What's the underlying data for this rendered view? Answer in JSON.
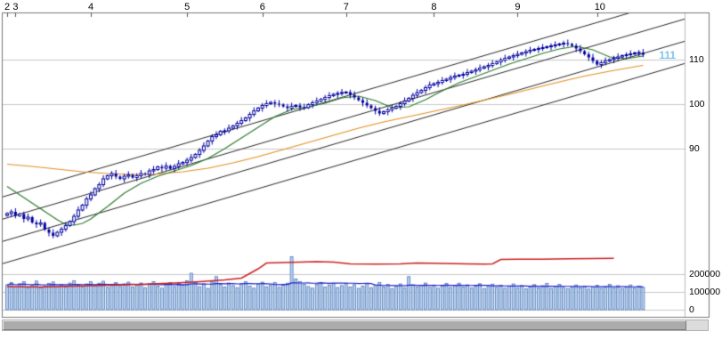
{
  "window": {
    "background": "#ffffff"
  },
  "colors": {
    "candle_outline": "#0000a0",
    "candle_down_fill": "#0000a0",
    "candle_up_fill": "#ffffff",
    "volume_bar_fill": "#b7d3ee",
    "volume_bar_stroke": "#4a6fb5",
    "short_ma": "#2d7d2d",
    "long_ma": "#e09020",
    "volume_red_line": "#cc2222",
    "volume_ma_line": "#2222cc",
    "channel_line": "#2a2a2a",
    "grid": "#c9c9c9",
    "frame": "#777777",
    "divider": "#bbbbbb",
    "last_price": "#7cc4f0",
    "axis_text": "#000000"
  },
  "chart_data": {
    "type": "candlestick",
    "title": "",
    "x_axis": {
      "unit": "month",
      "months": [
        {
          "label": "2",
          "bar_index": 0
        },
        {
          "label": "3",
          "bar_index": 2
        },
        {
          "label": "4",
          "bar_index": 20
        },
        {
          "label": "5",
          "bar_index": 43
        },
        {
          "label": "6",
          "bar_index": 61
        },
        {
          "label": "7",
          "bar_index": 81
        },
        {
          "label": "8",
          "bar_index": 102
        },
        {
          "label": "9",
          "bar_index": 122
        },
        {
          "label": "10",
          "bar_index": 141
        }
      ]
    },
    "price_axis": {
      "side": "right",
      "ticks": [
        110,
        100,
        90
      ]
    },
    "volume_axis": {
      "side": "right",
      "ticks": [
        200000,
        100000,
        0
      ]
    },
    "last_price_label": "111",
    "first_open": 75.0,
    "closes": [
      75.4,
      75.8,
      74.9,
      75.3,
      74.2,
      74.6,
      73.4,
      73.0,
      73.3,
      71.8,
      71.1,
      70.4,
      71.2,
      71.9,
      72.7,
      73.6,
      74.8,
      76.2,
      77.3,
      78.7,
      79.6,
      81.0,
      81.9,
      83.2,
      83.9,
      84.4,
      83.7,
      83.2,
      83.8,
      84.1,
      83.5,
      83.9,
      84.4,
      84.2,
      85.0,
      85.3,
      85.9,
      85.6,
      86.1,
      85.5,
      86.0,
      86.6,
      86.9,
      87.4,
      88.0,
      88.7,
      89.6,
      90.6,
      91.7,
      92.7,
      93.1,
      93.9,
      94.0,
      94.6,
      95.1,
      95.7,
      96.3,
      96.9,
      97.7,
      98.5,
      99.1,
      99.7,
      100.1,
      100.4,
      100.1,
      99.9,
      99.5,
      99.1,
      99.5,
      99.7,
      99.3,
      99.2,
      99.9,
      100.3,
      100.7,
      101.1,
      101.5,
      101.9,
      102.2,
      102.4,
      102.6,
      102.7,
      102.1,
      101.5,
      100.9,
      100.3,
      99.7,
      99.1,
      98.5,
      97.9,
      98.3,
      98.7,
      99.1,
      99.5,
      100.1,
      100.7,
      101.3,
      102.0,
      102.6,
      103.1,
      103.7,
      104.3,
      104.6,
      104.9,
      105.3,
      105.6,
      106.0,
      106.3,
      106.5,
      106.7,
      107.1,
      107.4,
      107.7,
      108.1,
      108.4,
      108.7,
      109.1,
      109.5,
      109.9,
      110.3,
      110.6,
      110.9,
      111.2,
      111.5,
      111.8,
      112.1,
      112.3,
      112.5,
      112.7,
      112.9,
      113.1,
      113.3,
      113.5,
      113.7,
      113.5,
      113.1,
      112.5,
      111.9,
      111.2,
      110.5,
      109.7,
      108.9,
      109.3,
      109.7,
      110.0,
      110.3,
      110.6,
      110.9,
      111.1,
      111.3,
      111.5,
      111.6,
      111.1
    ],
    "volumes": [
      140000,
      152000,
      128000,
      146000,
      158000,
      124000,
      136000,
      161000,
      122000,
      133000,
      148000,
      156000,
      130000,
      142000,
      127000,
      150000,
      163000,
      138000,
      129000,
      145000,
      157000,
      134000,
      149000,
      160000,
      126000,
      141000,
      152000,
      131000,
      144000,
      155000,
      128000,
      139000,
      150000,
      124000,
      146000,
      158000,
      133000,
      121000,
      142000,
      153000,
      130000,
      148000,
      137000,
      162000,
      205000,
      152000,
      129000,
      145000,
      120000,
      157000,
      186000,
      142000,
      128000,
      150000,
      136000,
      124000,
      147000,
      158000,
      132000,
      121000,
      144000,
      155000,
      129000,
      140000,
      152000,
      126000,
      138000,
      149000,
      298000,
      172000,
      158000,
      144000,
      130000,
      121000,
      142000,
      153000,
      127000,
      139000,
      148000,
      125000,
      136000,
      150000,
      128000,
      141000,
      120000,
      133000,
      146000,
      124000,
      137000,
      152000,
      129000,
      143000,
      118000,
      131000,
      145000,
      122000,
      186000,
      140000,
      127000,
      138000,
      150000,
      126000,
      139000,
      121000,
      134000,
      147000,
      125000,
      136000,
      149000,
      128000,
      140000,
      122000,
      133000,
      146000,
      119000,
      131000,
      144000,
      126000,
      138000,
      121000,
      132000,
      145000,
      124000,
      136000,
      118000,
      129000,
      141000,
      123000,
      135000,
      147000,
      120000,
      131000,
      143000,
      125000,
      117000,
      128000,
      139000,
      122000,
      133000,
      116000,
      127000,
      138000,
      120000,
      130000,
      142000,
      124000,
      135000,
      118000,
      129000,
      139000,
      121000,
      132000,
      126000
    ],
    "overlays": {
      "short_ma": {
        "name": "short moving average",
        "points": [
          [
            0,
            81.5
          ],
          [
            4,
            79.0
          ],
          [
            8,
            76.5
          ],
          [
            12,
            74.0
          ],
          [
            14,
            73.0
          ],
          [
            16,
            72.8
          ],
          [
            18,
            73.2
          ],
          [
            20,
            74.2
          ],
          [
            24,
            77.0
          ],
          [
            28,
            80.0
          ],
          [
            32,
            82.2
          ],
          [
            36,
            83.8
          ],
          [
            40,
            85.0
          ],
          [
            44,
            86.2
          ],
          [
            48,
            87.8
          ],
          [
            52,
            90.0
          ],
          [
            56,
            92.4
          ],
          [
            60,
            94.8
          ],
          [
            64,
            97.2
          ],
          [
            68,
            98.8
          ],
          [
            72,
            99.4
          ],
          [
            76,
            100.2
          ],
          [
            80,
            101.4
          ],
          [
            84,
            101.8
          ],
          [
            88,
            100.8
          ],
          [
            92,
            99.2
          ],
          [
            96,
            99.4
          ],
          [
            100,
            101.0
          ],
          [
            104,
            103.0
          ],
          [
            108,
            104.8
          ],
          [
            112,
            106.2
          ],
          [
            116,
            107.6
          ],
          [
            120,
            109.0
          ],
          [
            124,
            110.2
          ],
          [
            128,
            111.4
          ],
          [
            132,
            112.4
          ],
          [
            136,
            113.0
          ],
          [
            140,
            112.2
          ],
          [
            144,
            110.6
          ],
          [
            148,
            110.2
          ],
          [
            152,
            110.8
          ]
        ]
      },
      "long_ma": {
        "name": "long moving average",
        "points": [
          [
            0,
            86.5
          ],
          [
            6,
            86.0
          ],
          [
            12,
            85.4
          ],
          [
            18,
            84.8
          ],
          [
            24,
            84.4
          ],
          [
            30,
            84.2
          ],
          [
            36,
            84.3
          ],
          [
            42,
            84.8
          ],
          [
            48,
            85.6
          ],
          [
            54,
            86.8
          ],
          [
            60,
            88.2
          ],
          [
            66,
            89.8
          ],
          [
            72,
            91.4
          ],
          [
            78,
            93.0
          ],
          [
            84,
            94.6
          ],
          [
            90,
            96.0
          ],
          [
            96,
            97.2
          ],
          [
            102,
            98.4
          ],
          [
            108,
            99.6
          ],
          [
            114,
            100.9
          ],
          [
            120,
            102.2
          ],
          [
            126,
            103.6
          ],
          [
            132,
            105.0
          ],
          [
            138,
            106.3
          ],
          [
            144,
            107.4
          ],
          [
            150,
            108.4
          ],
          [
            152,
            108.7
          ]
        ]
      },
      "channel_lines": {
        "name": "trend channel",
        "lines": [
          [
            -2,
            63.9,
            168,
            110.8
          ],
          [
            -2,
            68.9,
            168,
            115.8
          ],
          [
            -2,
            73.9,
            168,
            120.8
          ],
          [
            -2,
            78.9,
            168,
            125.8
          ]
        ]
      },
      "volume_red_line": {
        "name": "volume indicator (red)",
        "points": [
          [
            0,
            130000
          ],
          [
            8,
            128000
          ],
          [
            16,
            132000
          ],
          [
            24,
            138000
          ],
          [
            32,
            142000
          ],
          [
            40,
            150000
          ],
          [
            46,
            158000
          ],
          [
            52,
            168000
          ],
          [
            56,
            178000
          ],
          [
            60,
            230000
          ],
          [
            62,
            262000
          ],
          [
            66,
            265000
          ],
          [
            70,
            268000
          ],
          [
            74,
            270000
          ],
          [
            78,
            268000
          ],
          [
            82,
            258000
          ],
          [
            88,
            256000
          ],
          [
            94,
            258000
          ],
          [
            98,
            262000
          ],
          [
            104,
            260000
          ],
          [
            110,
            258000
          ],
          [
            114,
            256000
          ],
          [
            116,
            258000
          ],
          [
            118,
            282000
          ],
          [
            122,
            284000
          ],
          [
            128,
            284000
          ],
          [
            134,
            286000
          ],
          [
            140,
            288000
          ],
          [
            145,
            289000
          ]
        ]
      },
      "volume_ma_line": {
        "name": "volume moving average (blue)",
        "window": 20
      }
    }
  }
}
